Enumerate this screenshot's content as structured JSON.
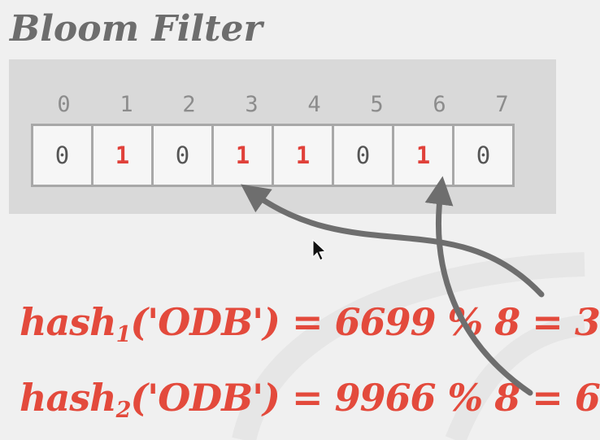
{
  "title": "Bloom Filter",
  "indices": [
    "0",
    "1",
    "2",
    "3",
    "4",
    "5",
    "6",
    "7"
  ],
  "bits": [
    {
      "value": "0",
      "set": false
    },
    {
      "value": "1",
      "set": true
    },
    {
      "value": "0",
      "set": false
    },
    {
      "value": "1",
      "set": true
    },
    {
      "value": "1",
      "set": true
    },
    {
      "value": "0",
      "set": false
    },
    {
      "value": "1",
      "set": true
    },
    {
      "value": "0",
      "set": false
    }
  ],
  "formulas": [
    {
      "fn": "hash",
      "sub": "1",
      "rest": "('ODB') = 6699 % 8 = 3",
      "target_index": 3
    },
    {
      "fn": "hash",
      "sub": "2",
      "rest": "('ODB') = 9966 % 8 = 6",
      "target_index": 6
    }
  ],
  "colors": {
    "highlight": "#e34a3c",
    "arrow": "#6e6e6e",
    "panel": "#d9d9d9"
  }
}
